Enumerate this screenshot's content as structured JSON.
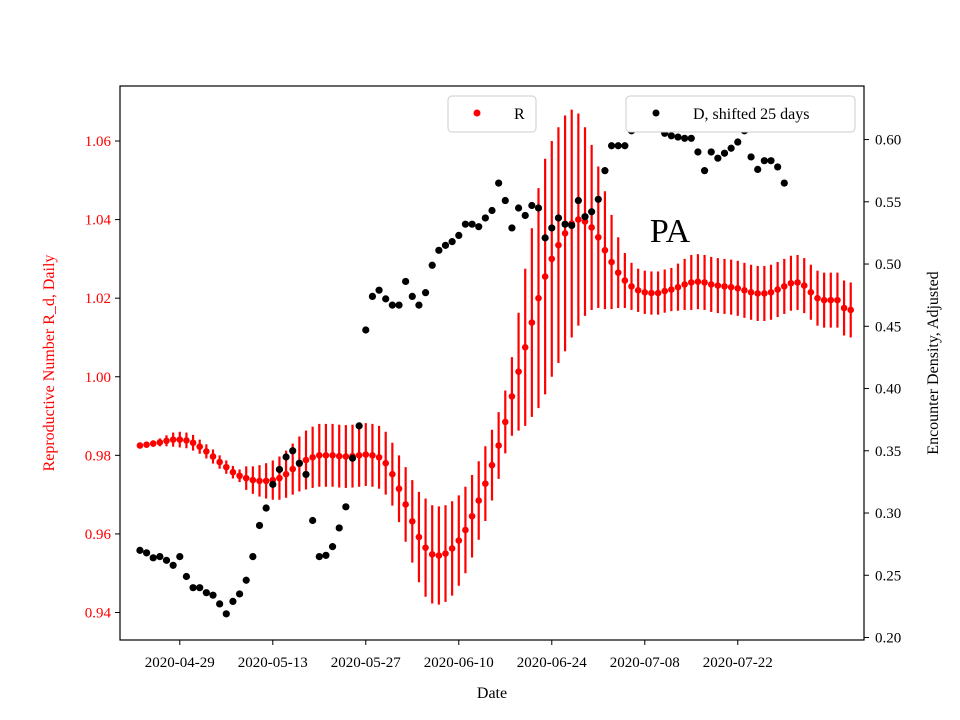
{
  "chart_data": {
    "type": "scatter",
    "annotation": "PA",
    "xlabel": "Date",
    "ylabel_left": "Reproductive Number R_d, Daily",
    "ylabel_right": "Encounter Density, Adjusted",
    "x_tick_labels": [
      "2020-04-29",
      "2020-05-13",
      "2020-05-27",
      "2020-06-10",
      "2020-06-24",
      "2020-07-08",
      "2020-07-22"
    ],
    "y_left_ticks": [
      "0.94",
      "0.96",
      "0.98",
      "1.00",
      "1.02",
      "1.04",
      "1.06"
    ],
    "y_right_ticks": [
      "0.20",
      "0.25",
      "0.30",
      "0.35",
      "0.40",
      "0.45",
      "0.50",
      "0.55",
      "0.60"
    ],
    "y_left_range": [
      0.933,
      1.074
    ],
    "y_right_range": [
      0.198,
      0.643
    ],
    "x_range": [
      "2020-04-20",
      "2020-08-10"
    ],
    "legend": [
      {
        "label": "R",
        "color": "#ff0000",
        "placement": "top-center"
      },
      {
        "label": "D, shifted 25 days",
        "color": "#000000",
        "placement": "top-right"
      }
    ],
    "colors": {
      "R": "#ff0000",
      "D": "#000000",
      "left_axis_text": "#ff0000"
    },
    "series": [
      {
        "name": "R",
        "axis": "left",
        "start_date": "2020-04-23",
        "values": [
          0.9825,
          0.9827,
          0.983,
          0.9833,
          0.9837,
          0.984,
          0.984,
          0.9838,
          0.9832,
          0.9822,
          0.981,
          0.9797,
          0.9783,
          0.977,
          0.9757,
          0.9748,
          0.9742,
          0.9737,
          0.9735,
          0.9735,
          0.9737,
          0.9742,
          0.9752,
          0.9765,
          0.9778,
          0.9788,
          0.9795,
          0.98,
          0.98,
          0.98,
          0.9798,
          0.9797,
          0.9798,
          0.98,
          0.9802,
          0.98,
          0.9795,
          0.978,
          0.9752,
          0.9715,
          0.9675,
          0.9632,
          0.9592,
          0.9565,
          0.9548,
          0.9545,
          0.955,
          0.9563,
          0.9583,
          0.961,
          0.9645,
          0.9685,
          0.9728,
          0.9775,
          0.9825,
          0.9885,
          0.995,
          1.0013,
          1.0075,
          1.0138,
          1.02,
          1.0255,
          1.03,
          1.0335,
          1.0365,
          1.039,
          1.04,
          1.0395,
          1.038,
          1.0355,
          1.0322,
          1.0292,
          1.0265,
          1.0245,
          1.023,
          1.022,
          1.0215,
          1.0213,
          1.0213,
          1.0218,
          1.0222,
          1.0228,
          1.0235,
          1.024,
          1.0242,
          1.024,
          1.0235,
          1.0232,
          1.023,
          1.0228,
          1.0225,
          1.022,
          1.0215,
          1.0212,
          1.0212,
          1.0215,
          1.0222,
          1.023,
          1.0238,
          1.024,
          1.0232,
          1.0215,
          1.02,
          1.0195,
          1.0195,
          1.0195,
          1.0175,
          1.017
        ],
        "err": [
          0.0005,
          0.0006,
          0.0008,
          0.001,
          0.0014,
          0.0018,
          0.002,
          0.002,
          0.002,
          0.0018,
          0.0018,
          0.0018,
          0.0017,
          0.0017,
          0.0016,
          0.0016,
          0.003,
          0.0035,
          0.004,
          0.0045,
          0.005,
          0.0055,
          0.006,
          0.0065,
          0.007,
          0.0075,
          0.0078,
          0.008,
          0.008,
          0.008,
          0.008,
          0.008,
          0.008,
          0.008,
          0.008,
          0.008,
          0.008,
          0.008,
          0.008,
          0.0085,
          0.0095,
          0.0105,
          0.0115,
          0.0125,
          0.0125,
          0.0125,
          0.0123,
          0.012,
          0.0115,
          0.011,
          0.0105,
          0.01,
          0.0095,
          0.009,
          0.0085,
          0.008,
          0.01,
          0.015,
          0.02,
          0.024,
          0.028,
          0.03,
          0.03,
          0.03,
          0.03,
          0.029,
          0.027,
          0.024,
          0.021,
          0.018,
          0.015,
          0.012,
          0.009,
          0.007,
          0.006,
          0.0055,
          0.0055,
          0.0055,
          0.0055,
          0.0055,
          0.0055,
          0.006,
          0.0065,
          0.007,
          0.007,
          0.007,
          0.007,
          0.007,
          0.007,
          0.007,
          0.007,
          0.007,
          0.007,
          0.007,
          0.007,
          0.007,
          0.007,
          0.007,
          0.007,
          0.007,
          0.007,
          0.007,
          0.007,
          0.007,
          0.007,
          0.007,
          0.007,
          0.007
        ]
      },
      {
        "name": "D, shifted 25 days",
        "axis": "right",
        "points": [
          [
            "2020-04-23",
            0.27
          ],
          [
            "2020-04-24",
            0.268
          ],
          [
            "2020-04-25",
            0.264
          ],
          [
            "2020-04-26",
            0.265
          ],
          [
            "2020-04-27",
            0.262
          ],
          [
            "2020-04-28",
            0.258
          ],
          [
            "2020-04-29",
            0.265
          ],
          [
            "2020-04-30",
            0.249
          ],
          [
            "2020-05-01",
            0.24
          ],
          [
            "2020-05-02",
            0.24
          ],
          [
            "2020-05-03",
            0.236
          ],
          [
            "2020-05-04",
            0.234
          ],
          [
            "2020-05-05",
            0.227
          ],
          [
            "2020-05-06",
            0.219
          ],
          [
            "2020-05-07",
            0.229
          ],
          [
            "2020-05-08",
            0.235
          ],
          [
            "2020-05-09",
            0.246
          ],
          [
            "2020-05-10",
            0.265
          ],
          [
            "2020-05-11",
            0.29
          ],
          [
            "2020-05-12",
            0.304
          ],
          [
            "2020-05-13",
            0.323
          ],
          [
            "2020-05-14",
            0.335
          ],
          [
            "2020-05-15",
            0.345
          ],
          [
            "2020-05-16",
            0.35
          ],
          [
            "2020-05-17",
            0.34
          ],
          [
            "2020-05-18",
            0.331
          ],
          [
            "2020-05-19",
            0.294
          ],
          [
            "2020-05-20",
            0.265
          ],
          [
            "2020-05-21",
            0.266
          ],
          [
            "2020-05-22",
            0.273
          ],
          [
            "2020-05-23",
            0.288
          ],
          [
            "2020-05-24",
            0.305
          ],
          [
            "2020-05-25",
            0.344
          ],
          [
            "2020-05-26",
            0.37
          ],
          [
            "2020-05-27",
            0.447
          ],
          [
            "2020-05-28",
            0.474
          ],
          [
            "2020-05-29",
            0.479
          ],
          [
            "2020-05-30",
            0.472
          ],
          [
            "2020-05-31",
            0.467
          ],
          [
            "2020-06-01",
            0.467
          ],
          [
            "2020-06-02",
            0.486
          ],
          [
            "2020-06-03",
            0.474
          ],
          [
            "2020-06-04",
            0.467
          ],
          [
            "2020-06-05",
            0.477
          ],
          [
            "2020-06-06",
            0.499
          ],
          [
            "2020-06-07",
            0.511
          ],
          [
            "2020-06-08",
            0.515
          ],
          [
            "2020-06-09",
            0.518
          ],
          [
            "2020-06-10",
            0.523
          ],
          [
            "2020-06-11",
            0.532
          ],
          [
            "2020-06-12",
            0.532
          ],
          [
            "2020-06-13",
            0.53
          ],
          [
            "2020-06-14",
            0.537
          ],
          [
            "2020-06-15",
            0.543
          ],
          [
            "2020-06-16",
            0.565
          ],
          [
            "2020-06-17",
            0.551
          ],
          [
            "2020-06-18",
            0.529
          ],
          [
            "2020-06-19",
            0.545
          ],
          [
            "2020-06-20",
            0.539
          ],
          [
            "2020-06-21",
            0.547
          ],
          [
            "2020-06-22",
            0.545
          ],
          [
            "2020-06-23",
            0.521
          ],
          [
            "2020-06-24",
            0.529
          ],
          [
            "2020-06-25",
            0.537
          ],
          [
            "2020-06-26",
            0.532
          ],
          [
            "2020-06-27",
            0.531
          ],
          [
            "2020-06-28",
            0.551
          ],
          [
            "2020-06-29",
            0.538
          ],
          [
            "2020-06-30",
            0.542
          ],
          [
            "2020-07-01",
            0.552
          ],
          [
            "2020-07-02",
            0.575
          ],
          [
            "2020-07-03",
            0.595
          ],
          [
            "2020-07-04",
            0.595
          ],
          [
            "2020-07-05",
            0.595
          ],
          [
            "2020-07-06",
            0.607
          ],
          [
            "2020-07-07",
            0.61
          ],
          [
            "2020-07-08",
            0.617
          ],
          [
            "2020-07-09",
            0.618
          ],
          [
            "2020-07-10",
            0.612
          ],
          [
            "2020-07-11",
            0.605
          ],
          [
            "2020-07-12",
            0.603
          ],
          [
            "2020-07-13",
            0.602
          ],
          [
            "2020-07-14",
            0.601
          ],
          [
            "2020-07-15",
            0.601
          ],
          [
            "2020-07-16",
            0.59
          ],
          [
            "2020-07-17",
            0.575
          ],
          [
            "2020-07-18",
            0.59
          ],
          [
            "2020-07-19",
            0.585
          ],
          [
            "2020-07-20",
            0.589
          ],
          [
            "2020-07-21",
            0.593
          ],
          [
            "2020-07-22",
            0.598
          ],
          [
            "2020-07-23",
            0.607
          ],
          [
            "2020-07-24",
            0.586
          ],
          [
            "2020-07-25",
            0.576
          ],
          [
            "2020-07-26",
            0.583
          ],
          [
            "2020-07-27",
            0.583
          ],
          [
            "2020-07-28",
            0.578
          ],
          [
            "2020-07-29",
            0.565
          ]
        ]
      }
    ]
  }
}
